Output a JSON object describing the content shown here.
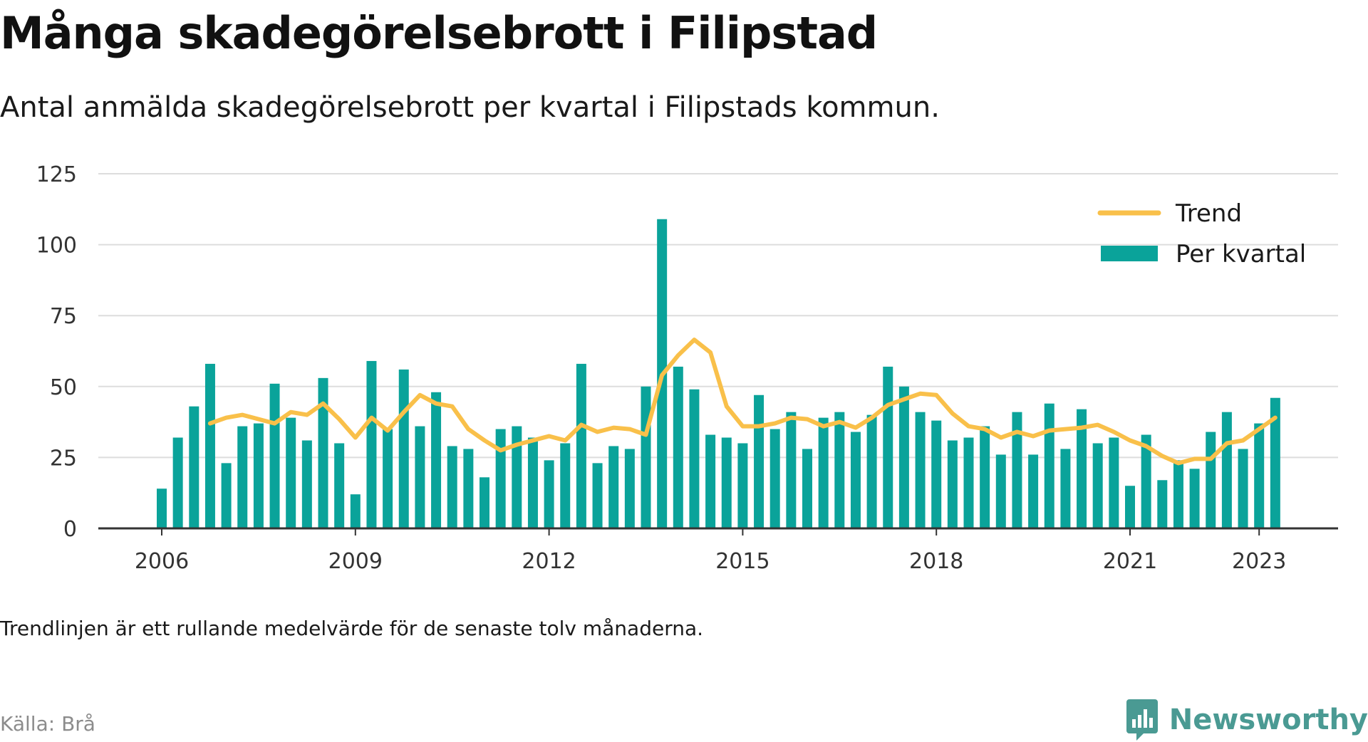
{
  "title": "Många skadegörelsebrott i Filipstad",
  "subtitle": "Antal anmälda skadegörelsebrott per kvartal i Filipstads kommun.",
  "note": "Trendlinjen är ett rullande medelvärde för de senaste tolv månaderna.",
  "source": "Källa: Brå",
  "brand": {
    "name": "Newsworthy",
    "icon": "bar-chart-speech-bubble-icon"
  },
  "colors": {
    "bars": "#0aa39a",
    "trend": "#f9c04a",
    "grid": "#dddddd",
    "axis": "#333333",
    "brand": "#4a9a93"
  },
  "chart_data": {
    "type": "bar",
    "x_unit": "quarter",
    "x_start": "2006-Q1",
    "ylim": [
      0,
      125
    ],
    "yticks": [
      0,
      25,
      50,
      75,
      100,
      125
    ],
    "xticks": [
      {
        "quarter": "2006-Q1",
        "label": "2006"
      },
      {
        "quarter": "2009-Q1",
        "label": "2009"
      },
      {
        "quarter": "2012-Q1",
        "label": "2012"
      },
      {
        "quarter": "2015-Q1",
        "label": "2015"
      },
      {
        "quarter": "2018-Q1",
        "label": "2018"
      },
      {
        "quarter": "2021-Q1",
        "label": "2021"
      },
      {
        "quarter": "2023-Q1",
        "label": "2023"
      }
    ],
    "grid": true,
    "legend_position": "top-right",
    "series": [
      {
        "name": "Per kvartal",
        "type": "bar",
        "values": [
          14,
          32,
          43,
          58,
          23,
          36,
          37,
          51,
          39,
          31,
          53,
          30,
          12,
          59,
          35,
          56,
          36,
          48,
          29,
          28,
          18,
          35,
          36,
          32,
          24,
          30,
          58,
          23,
          29,
          28,
          50,
          109,
          57,
          49,
          33,
          32,
          30,
          47,
          35,
          41,
          28,
          39,
          41,
          34,
          40,
          57,
          50,
          41,
          38,
          31,
          32,
          36,
          26,
          41,
          26,
          44,
          28,
          42,
          30,
          32,
          15,
          33,
          17,
          24,
          21,
          34,
          41,
          28,
          37,
          46
        ]
      },
      {
        "name": "Trend",
        "type": "line",
        "values": [
          null,
          null,
          null,
          37,
          39,
          40,
          38.5,
          37,
          41,
          40,
          44,
          38.5,
          32,
          39,
          34.5,
          41,
          47,
          44,
          43,
          35,
          31,
          27.5,
          29.5,
          31,
          32.5,
          31,
          36.5,
          34,
          35.5,
          35,
          33,
          54,
          61,
          66.5,
          62,
          43,
          36,
          36,
          37,
          39,
          38.5,
          36,
          37.5,
          35.5,
          39,
          43.5,
          45.5,
          47.5,
          47,
          40.5,
          36,
          35,
          32,
          34,
          32.5,
          34.5,
          35,
          35.5,
          36.5,
          34,
          31,
          29,
          25.5,
          23,
          24.5,
          24.5,
          30,
          31,
          35,
          39
        ]
      }
    ]
  }
}
